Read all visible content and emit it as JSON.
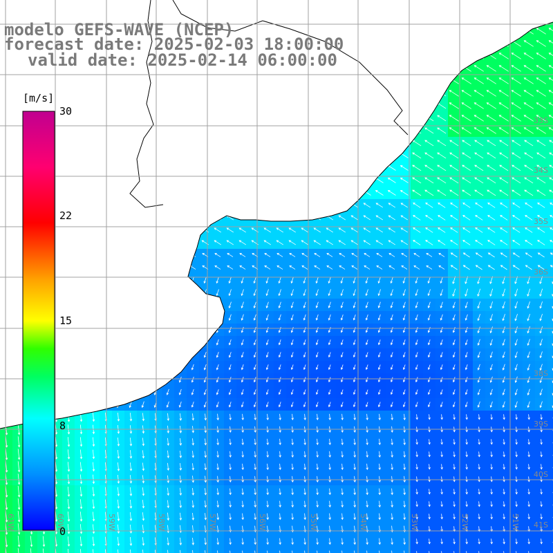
{
  "header": {
    "model_line": "modelo GEFS-WAVE (NCEP)",
    "forecast_line": "forecast date: 2025-02-03 18:00:00",
    "valid_line": "valid date: 2025-02-14 06:00:00"
  },
  "colorbar": {
    "unit": "[m/s]",
    "ticks": [
      "30",
      "22",
      "15",
      "8",
      "0"
    ],
    "tick_values": [
      30,
      22,
      15,
      8,
      0
    ],
    "range": [
      0,
      30
    ],
    "stops": [
      {
        "v": 0,
        "color": "#0000ff"
      },
      {
        "v": 4,
        "color": "#0090ff"
      },
      {
        "v": 8,
        "color": "#00ffff"
      },
      {
        "v": 11,
        "color": "#00ff60"
      },
      {
        "v": 13,
        "color": "#30ff00"
      },
      {
        "v": 15,
        "color": "#ffff00"
      },
      {
        "v": 18,
        "color": "#ffa000"
      },
      {
        "v": 22,
        "color": "#ff0000"
      },
      {
        "v": 26,
        "color": "#ff0070"
      },
      {
        "v": 30,
        "color": "#c00090"
      }
    ]
  },
  "map": {
    "lat_labels": [
      "33S",
      "34S",
      "35S",
      "36S",
      "38S",
      "39S",
      "40S",
      "41S"
    ],
    "lon_labels": [
      "61W",
      "60W",
      "59W",
      "58W",
      "57W",
      "56W",
      "55W",
      "54W",
      "53W",
      "52W",
      "51W"
    ],
    "colors": {
      "ocean_grid": "#a0a0a0",
      "land": "#ffffff",
      "coast": "#000000",
      "arrows": "#ffffff"
    }
  }
}
